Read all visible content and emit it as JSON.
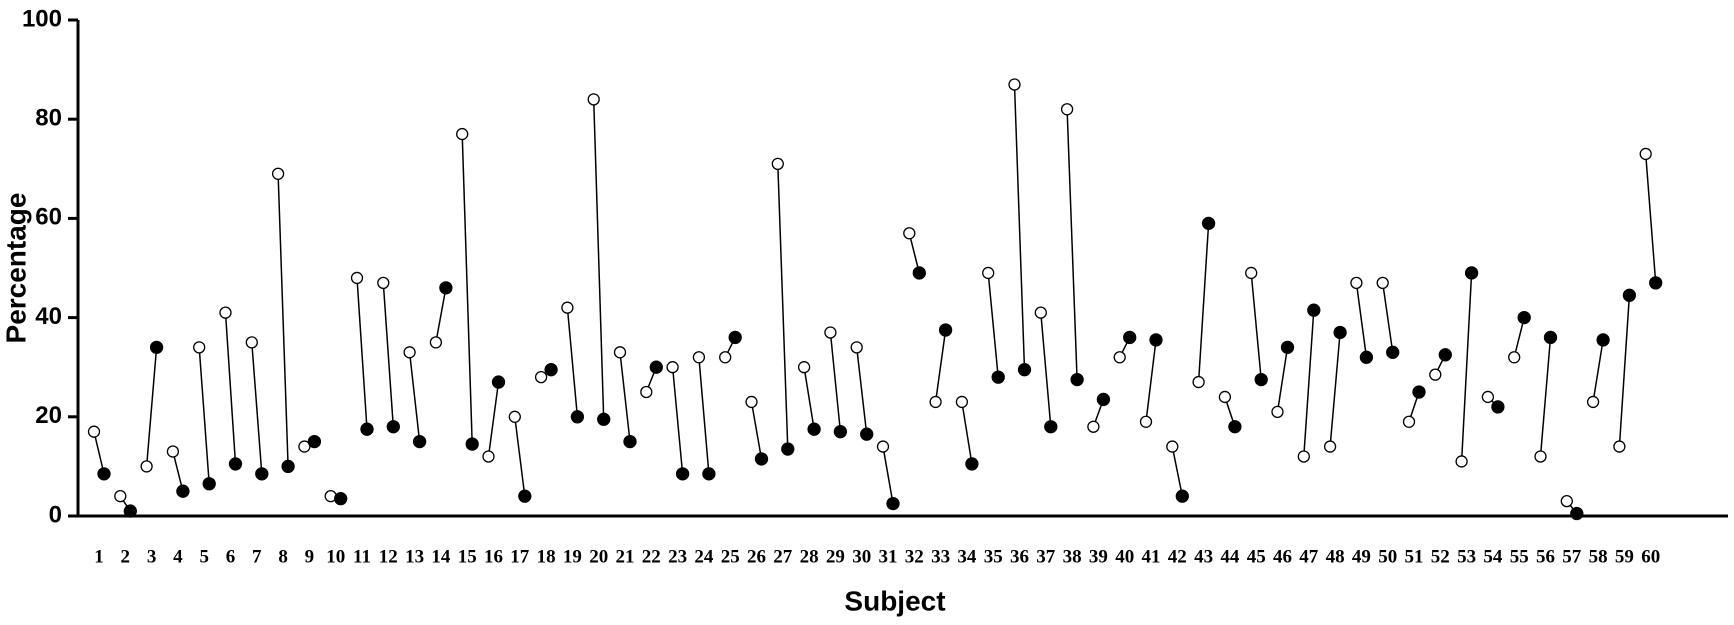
{
  "chart_data": {
    "type": "paired-dot",
    "y_label": "Percentage",
    "x_label": "Subject",
    "categories": [
      "1",
      "2",
      "3",
      "4",
      "5",
      "6",
      "7",
      "8",
      "9",
      "10",
      "11",
      "12",
      "13",
      "14",
      "15",
      "16",
      "17",
      "18",
      "19",
      "20",
      "21",
      "22",
      "23",
      "24",
      "25",
      "26",
      "27",
      "28",
      "29",
      "30",
      "31",
      "32",
      "33",
      "34",
      "35",
      "36",
      "37",
      "38",
      "39",
      "40",
      "41",
      "42",
      "43",
      "44",
      "45",
      "46",
      "47",
      "48",
      "49",
      "50",
      "51",
      "52",
      "53",
      "54",
      "55",
      "56",
      "57",
      "58",
      "59",
      "60"
    ],
    "series": [
      {
        "marker": "open",
        "color": "#000000",
        "values": [
          17,
          4,
          10,
          13,
          34,
          41,
          35,
          69,
          14,
          4,
          48,
          47,
          33,
          35,
          77,
          12,
          20,
          28,
          42,
          84,
          33,
          25,
          30,
          32,
          32,
          23,
          71,
          30,
          37,
          34,
          14,
          57,
          23,
          23,
          49,
          87,
          41,
          82,
          18,
          32,
          19,
          14,
          27,
          24,
          49,
          21,
          12,
          14,
          47,
          47,
          19,
          28.5,
          11,
          24,
          32,
          12,
          3,
          23,
          14,
          73
        ]
      },
      {
        "marker": "filled",
        "color": "#000000",
        "values": [
          8.5,
          1,
          34,
          5,
          6.5,
          10.5,
          8.5,
          10,
          15,
          3.5,
          17.5,
          18,
          15,
          46,
          14.5,
          27,
          4,
          29.5,
          20,
          19.5,
          15,
          30,
          8.5,
          8.5,
          36,
          11.5,
          13.5,
          17.5,
          17,
          16.5,
          2.5,
          49,
          37.5,
          10.5,
          28,
          29.5,
          18,
          27.5,
          23.5,
          36,
          35.5,
          4,
          59,
          18,
          27.5,
          34,
          41.5,
          37,
          32,
          33,
          25,
          32.5,
          49,
          22,
          40,
          36,
          0.5,
          35.5,
          44.5,
          47
        ]
      }
    ],
    "ylim": [
      0,
      100
    ],
    "yticks": [
      0,
      20,
      40,
      60,
      80,
      100
    ]
  }
}
